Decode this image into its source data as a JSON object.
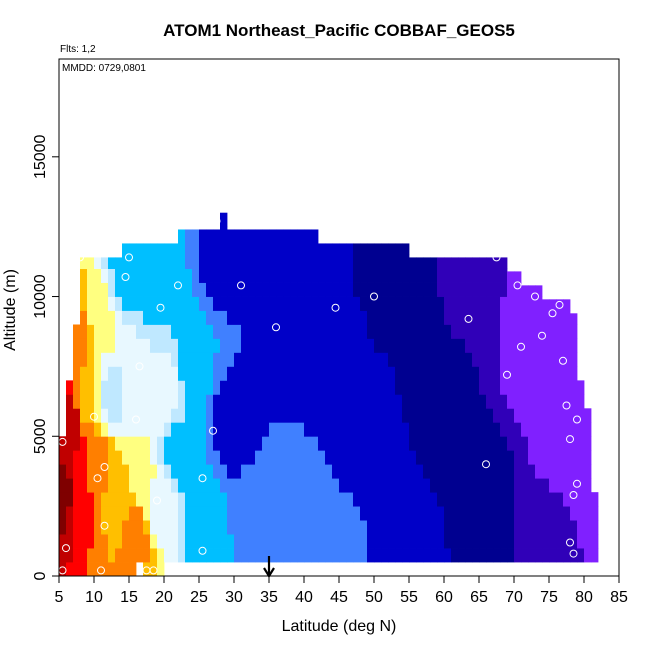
{
  "chart_data": {
    "type": "heatmap",
    "title": "ATOM1 Northeast_Pacific COBBAF_GEOS5",
    "subtitle_flights": "Flts: 1,2",
    "subtitle_dates": "MMDD: 0729,0801",
    "xlabel": "Latitude (deg N)",
    "ylabel": "Altitude (m)",
    "xlim": [
      5,
      85
    ],
    "ylim": [
      0,
      18500
    ],
    "x_ticks": [
      "5",
      "10",
      "15",
      "20",
      "25",
      "30",
      "35",
      "40",
      "45",
      "50",
      "55",
      "60",
      "65",
      "70",
      "75",
      "80",
      "85"
    ],
    "y_ticks": [
      "0",
      "5000",
      "10000",
      "15000"
    ],
    "marker_latitude": 35,
    "grid": false,
    "legend": "none",
    "coverage_top_altitude": [
      [
        5,
        5000
      ],
      [
        6,
        7000
      ],
      [
        7,
        9000
      ],
      [
        8,
        11400
      ],
      [
        10,
        11400
      ],
      [
        12,
        11400
      ],
      [
        14,
        11900
      ],
      [
        21,
        11900
      ],
      [
        22,
        12400
      ],
      [
        27,
        12400
      ],
      [
        28,
        13000
      ],
      [
        29,
        12400
      ],
      [
        41,
        12400
      ],
      [
        42,
        11900
      ],
      [
        54,
        11900
      ],
      [
        55,
        11400
      ],
      [
        68,
        11400
      ],
      [
        69,
        10900
      ],
      [
        71,
        10400
      ],
      [
        74,
        9900
      ],
      [
        76,
        9900
      ],
      [
        78,
        9400
      ],
      [
        79,
        7000
      ],
      [
        80,
        6000
      ],
      [
        81,
        3000
      ],
      [
        82,
        3000
      ]
    ],
    "coverage_bottom_altitude": [
      [
        5,
        0
      ],
      [
        15,
        0
      ],
      [
        16,
        500
      ],
      [
        17,
        0
      ],
      [
        19,
        0
      ],
      [
        20,
        500
      ],
      [
        80,
        500
      ],
      [
        82,
        3000
      ]
    ],
    "color_scale": [
      "#7f0000",
      "#c00000",
      "#ff0000",
      "#ff7f00",
      "#ffbf00",
      "#ffff80",
      "#e8f8ff",
      "#bfe8ff",
      "#00bfff",
      "#4080ff",
      "#0000c8",
      "#000090",
      "#3000b8",
      "#8020ff"
    ],
    "field_anchors": [
      {
        "lat": 5.5,
        "alt": 3000,
        "v": 0
      },
      {
        "lat": 6.5,
        "alt": 5500,
        "v": 1
      },
      {
        "lat": 8,
        "alt": 3000,
        "v": 2
      },
      {
        "lat": 7.5,
        "alt": 8500,
        "v": 3
      },
      {
        "lat": 9,
        "alt": 6500,
        "v": 4
      },
      {
        "lat": 10.5,
        "alt": 4000,
        "v": 3
      },
      {
        "lat": 11,
        "alt": 9000,
        "v": 5
      },
      {
        "lat": 13,
        "alt": 3000,
        "v": 4
      },
      {
        "lat": 12.5,
        "alt": 6500,
        "v": 7
      },
      {
        "lat": 14.5,
        "alt": 11000,
        "v": 8
      },
      {
        "lat": 16,
        "alt": 1500,
        "v": 3
      },
      {
        "lat": 16.5,
        "alt": 3500,
        "v": 5
      },
      {
        "lat": 16,
        "alt": 7000,
        "v": 6
      },
      {
        "lat": 19.5,
        "alt": 2500,
        "v": 6
      },
      {
        "lat": 20,
        "alt": 6500,
        "v": 6
      },
      {
        "lat": 19,
        "alt": 10500,
        "v": 8
      },
      {
        "lat": 22,
        "alt": 4500,
        "v": 8
      },
      {
        "lat": 24,
        "alt": 8000,
        "v": 8
      },
      {
        "lat": 26,
        "alt": 1500,
        "v": 8
      },
      {
        "lat": 28,
        "alt": 11500,
        "v": 10
      },
      {
        "lat": 30,
        "alt": 5500,
        "v": 10
      },
      {
        "lat": 33,
        "alt": 2000,
        "v": 9
      },
      {
        "lat": 38,
        "alt": 9500,
        "v": 10
      },
      {
        "lat": 44,
        "alt": 1000,
        "v": 9
      },
      {
        "lat": 48,
        "alt": 5000,
        "v": 10
      },
      {
        "lat": 54,
        "alt": 11000,
        "v": 11
      },
      {
        "lat": 55,
        "alt": 1000,
        "v": 10
      },
      {
        "lat": 60,
        "alt": 6500,
        "v": 11
      },
      {
        "lat": 64,
        "alt": 10500,
        "v": 12
      },
      {
        "lat": 66,
        "alt": 2500,
        "v": 11
      },
      {
        "lat": 72,
        "alt": 8500,
        "v": 13
      },
      {
        "lat": 75,
        "alt": 1200,
        "v": 12
      },
      {
        "lat": 77,
        "alt": 5000,
        "v": 13
      },
      {
        "lat": 80,
        "alt": 4000,
        "v": 13
      }
    ],
    "flight_points": [
      [
        5.5,
        200
      ],
      [
        5.5,
        4800
      ],
      [
        6,
        1000
      ],
      [
        10.5,
        3500
      ],
      [
        11,
        200
      ],
      [
        11.5,
        1800
      ],
      [
        11.5,
        3900
      ],
      [
        8,
        11400
      ],
      [
        10,
        5700
      ],
      [
        14.5,
        10700
      ],
      [
        15,
        11400
      ],
      [
        16,
        5600
      ],
      [
        16.5,
        7500
      ],
      [
        17.5,
        200
      ],
      [
        18.5,
        200
      ],
      [
        19,
        2700
      ],
      [
        19.5,
        9600
      ],
      [
        22,
        10400
      ],
      [
        25.5,
        900
      ],
      [
        25.5,
        3500
      ],
      [
        27,
        5200
      ],
      [
        27.5,
        12700
      ],
      [
        31,
        10400
      ],
      [
        36,
        8900
      ],
      [
        44.5,
        9600
      ],
      [
        50,
        10000
      ],
      [
        63.5,
        9200
      ],
      [
        66,
        4000
      ],
      [
        67.5,
        11400
      ],
      [
        69,
        7200
      ],
      [
        70.5,
        10400
      ],
      [
        71,
        8200
      ],
      [
        73,
        10000
      ],
      [
        74,
        8600
      ],
      [
        75.5,
        9400
      ],
      [
        76.5,
        9700
      ],
      [
        77,
        7700
      ],
      [
        77.5,
        6100
      ],
      [
        78,
        4900
      ],
      [
        78,
        1200
      ],
      [
        78.5,
        800
      ],
      [
        78.5,
        2900
      ],
      [
        79,
        3300
      ],
      [
        79,
        5600
      ]
    ]
  }
}
